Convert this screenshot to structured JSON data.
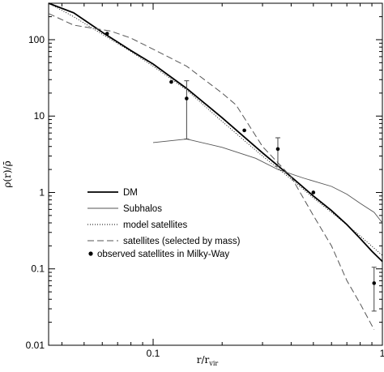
{
  "chart_data": {
    "type": "line",
    "xscale": "log",
    "yscale": "log",
    "xlim": [
      0.035,
      1.0
    ],
    "ylim": [
      0.01,
      300
    ],
    "xlabel": "r/r",
    "xlabel_sub": "vir",
    "ylabel": "ρ(r)/ρ̄",
    "grid": false,
    "legend_placement": "lower-left",
    "x_tick_labels": [
      {
        "value": 0.1,
        "label": "0.1"
      },
      {
        "value": 1,
        "label": "1"
      }
    ],
    "y_tick_labels": [
      {
        "value": 0.01,
        "label": "0.01"
      },
      {
        "value": 0.1,
        "label": "0.1"
      },
      {
        "value": 1,
        "label": "1"
      },
      {
        "value": 10,
        "label": "10"
      },
      {
        "value": 100,
        "label": "100"
      }
    ],
    "series": [
      {
        "name": "DM",
        "style": "solid-thick",
        "x": [
          0.035,
          0.045,
          0.06,
          0.08,
          0.1,
          0.14,
          0.2,
          0.3,
          0.4,
          0.5,
          0.6,
          0.7,
          0.8,
          0.9,
          1.0
        ],
        "y": [
          360,
          225,
          125,
          72,
          48,
          23,
          9.5,
          3.3,
          1.6,
          0.9,
          0.58,
          0.38,
          0.25,
          0.17,
          0.125
        ]
      },
      {
        "name": "Subhalos",
        "style": "solid-thin",
        "x": [
          0.1,
          0.14,
          0.2,
          0.28,
          0.35,
          0.45,
          0.6,
          0.7,
          0.8,
          0.92,
          1.0
        ],
        "y": [
          4.5,
          5.0,
          3.9,
          2.8,
          2.0,
          1.55,
          1.2,
          0.95,
          0.72,
          0.55,
          0.4
        ]
      },
      {
        "name": "model satellites",
        "style": "dotted",
        "x": [
          0.035,
          0.045,
          0.06,
          0.08,
          0.1,
          0.14,
          0.2,
          0.3,
          0.4,
          0.5,
          0.6,
          0.8,
          1.0
        ],
        "y": [
          320,
          200,
          118,
          70,
          45,
          22,
          8.5,
          3.0,
          1.5,
          0.85,
          0.55,
          0.27,
          0.15
        ]
      },
      {
        "name": "satellites (selected by mass)",
        "style": "dashed",
        "x": [
          0.035,
          0.045,
          0.065,
          0.08,
          0.1,
          0.14,
          0.2,
          0.23,
          0.3,
          0.4,
          0.5,
          0.6,
          0.7,
          0.8,
          0.92
        ],
        "y": [
          220,
          155,
          130,
          105,
          75,
          45,
          20,
          14,
          4.0,
          1.6,
          0.5,
          0.2,
          0.07,
          0.035,
          0.016
        ]
      }
    ],
    "observed_points": {
      "name": "observed satellites in Milky-Way",
      "points": [
        {
          "x": 0.063,
          "y": 120,
          "err_low": null,
          "err_high": null
        },
        {
          "x": 0.12,
          "y": 28,
          "err_low": null,
          "err_high": null
        },
        {
          "x": 0.14,
          "y": 17,
          "err_low": 5,
          "err_high": 29
        },
        {
          "x": 0.25,
          "y": 6.5,
          "err_low": null,
          "err_high": null
        },
        {
          "x": 0.35,
          "y": 3.7,
          "err_low": 2.2,
          "err_high": 5.2
        },
        {
          "x": 0.5,
          "y": 1.0,
          "err_low": null,
          "err_high": null
        },
        {
          "x": 0.92,
          "y": 0.065,
          "err_low": 0.028,
          "err_high": 0.105
        }
      ]
    }
  }
}
